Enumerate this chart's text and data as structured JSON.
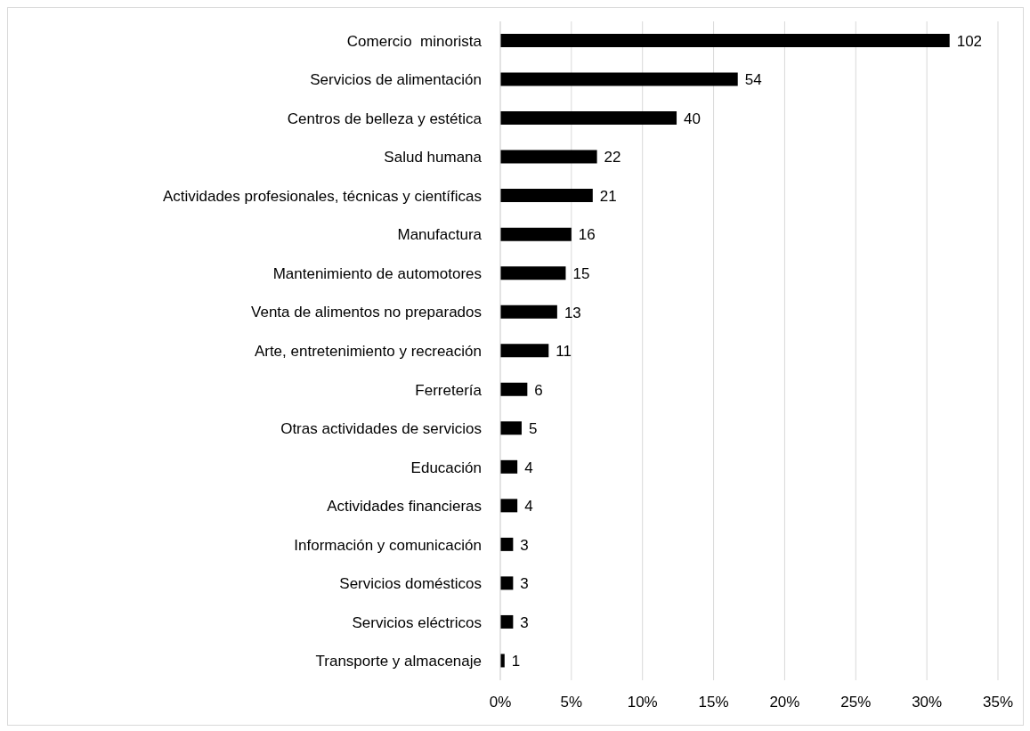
{
  "chart_data": {
    "type": "bar",
    "orientation": "horizontal",
    "categories": [
      "Comercio  minorista",
      "Servicios de alimentación",
      "Centros de belleza y estética",
      "Salud humana",
      "Actividades profesionales, técnicas y científicas",
      "Manufactura",
      "Mantenimiento de automotores",
      "Venta de alimentos no preparados",
      "Arte, entretenimiento y recreación",
      "Ferretería",
      "Otras actividades de servicios",
      "Educación",
      "Actividades financieras",
      "Información y comunicación",
      "Servicios domésticos",
      "Servicios eléctricos",
      "Transporte y almacenaje"
    ],
    "values": [
      31.6,
      16.7,
      12.4,
      6.8,
      6.5,
      5.0,
      4.6,
      4.0,
      3.4,
      1.9,
      1.5,
      1.2,
      1.2,
      0.9,
      0.9,
      0.9,
      0.3
    ],
    "annotations": [
      {
        "text": "102",
        "x": 31.6,
        "y": "Comercio  minorista"
      },
      {
        "text": "54",
        "x": 16.7,
        "y": "Servicios de alimentación"
      },
      {
        "text": "40",
        "x": 12.4,
        "y": "Centros de belleza y estética"
      },
      {
        "text": "22",
        "x": 6.8,
        "y": "Salud humana"
      },
      {
        "text": "21",
        "x": 6.5,
        "y": "Actividades profesionales, técnicas y científicas"
      },
      {
        "text": "16",
        "x": 5.0,
        "y": "Manufactura"
      },
      {
        "text": "15",
        "x": 4.6,
        "y": "Mantenimiento de automotores"
      },
      {
        "text": "13",
        "x": 4.0,
        "y": "Venta de alimentos no preparados"
      },
      {
        "text": "11",
        "x": 3.4,
        "y": "Arte, entretenimiento y recreación"
      },
      {
        "text": "6",
        "x": 1.9,
        "y": "Ferretería"
      },
      {
        "text": "5",
        "x": 1.5,
        "y": "Otras actividades de servicios"
      },
      {
        "text": "4",
        "x": 1.2,
        "y": "Educación"
      },
      {
        "text": "4",
        "x": 1.2,
        "y": "Actividades financieras"
      },
      {
        "text": "3",
        "x": 0.9,
        "y": "Información y comunicación"
      },
      {
        "text": "3",
        "x": 0.9,
        "y": "Servicios domésticos"
      },
      {
        "text": "3",
        "x": 0.9,
        "y": "Servicios eléctricos"
      },
      {
        "text": "1",
        "x": 0.3,
        "y": "Transporte y almacenaje"
      }
    ],
    "color": "#000000",
    "xlim": [
      0,
      35
    ],
    "xticks": [
      {
        "value": 0,
        "label": "0%"
      },
      {
        "value": 5,
        "label": "5%"
      },
      {
        "value": 10,
        "label": "10%"
      },
      {
        "value": 15,
        "label": "15%"
      },
      {
        "value": 20,
        "label": "20%"
      },
      {
        "value": 25,
        "label": "25%"
      },
      {
        "value": 30,
        "label": "30%"
      },
      {
        "value": 35,
        "label": "35%"
      }
    ],
    "grid": "x"
  }
}
